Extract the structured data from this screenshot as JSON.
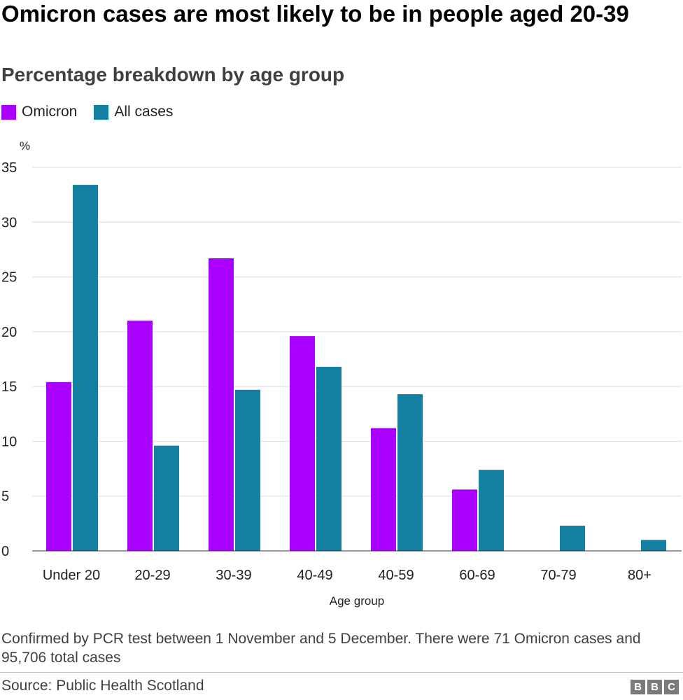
{
  "header": {
    "title": "Omicron cases are most likely to be in people aged 20-39",
    "subtitle": "Percentage breakdown by age group"
  },
  "legend": [
    {
      "label": "Omicron",
      "color": "#aa00ff"
    },
    {
      "label": "All cases",
      "color": "#1380a1"
    }
  ],
  "chart_data": {
    "type": "bar",
    "categories": [
      "Under 20",
      "20-29",
      "30-39",
      "40-49",
      "40-59",
      "60-69",
      "70-79",
      "80+"
    ],
    "series": [
      {
        "name": "Omicron",
        "color": "#aa00ff",
        "values": [
          15.4,
          21.0,
          26.7,
          19.6,
          11.2,
          5.6,
          0,
          0
        ]
      },
      {
        "name": "All cases",
        "color": "#1380a1",
        "values": [
          33.4,
          9.6,
          14.7,
          16.8,
          14.3,
          7.4,
          2.3,
          1.0
        ]
      }
    ],
    "ylim": [
      0,
      35
    ],
    "yticks": [
      0,
      5,
      10,
      15,
      20,
      25,
      30,
      35
    ],
    "ylabel": "%",
    "xlabel": "Age group",
    "grid": true,
    "legend_position": "top-left"
  },
  "footer": {
    "note": "Confirmed by PCR test between 1 November and 5 December. There were 71 Omicron cases and 95,706 total cases",
    "source": "Source: Public Health Scotland",
    "logo": [
      "B",
      "B",
      "C"
    ]
  }
}
